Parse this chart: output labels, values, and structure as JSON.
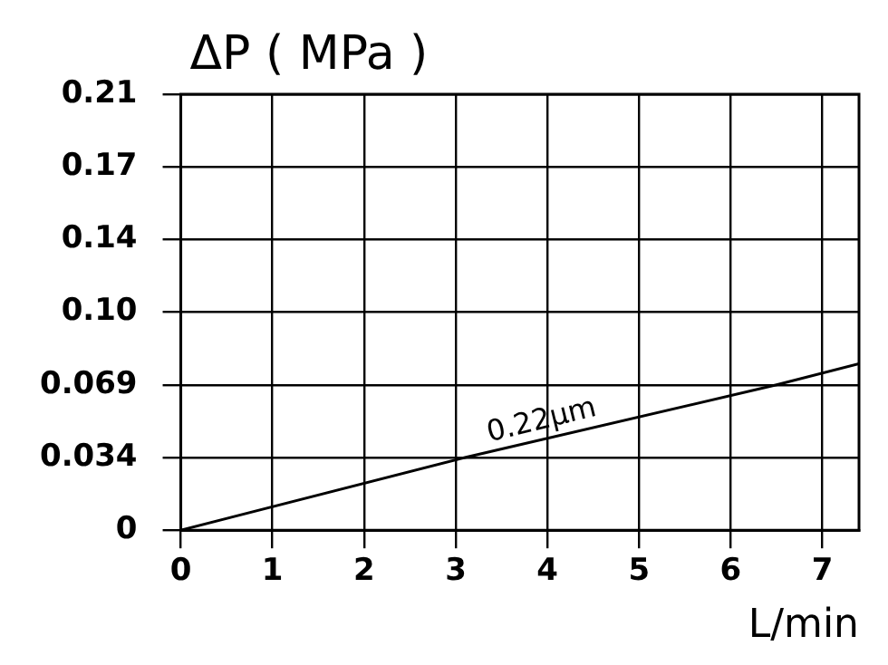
{
  "chart_data": {
    "type": "line",
    "ylabel": "ΔP ( MPa )",
    "xlabel": "L/min",
    "series": [
      {
        "name": "0.22μm",
        "color": "#000000",
        "x": [
          0,
          3.1,
          6.5,
          7.4
        ],
        "values": [
          0,
          0.0345,
          0.069,
          0.079
        ]
      }
    ],
    "xlim": [
      0,
      7.4
    ],
    "xticks": [
      0,
      1,
      2,
      3,
      4,
      5,
      6,
      7
    ],
    "ylim": [
      0,
      0.207
    ],
    "yticks": [
      0,
      {
        "value": 0.0345,
        "label": "0.034"
      },
      0.069,
      {
        "value": 0.1035,
        "label": "0.10"
      },
      {
        "value": 0.138,
        "label": "0.14"
      },
      {
        "value": 0.1725,
        "label": "0.17"
      },
      {
        "value": 0.207,
        "label": "0.21"
      }
    ],
    "grid": true,
    "legend": false,
    "marker": "none",
    "line_style": "solid"
  }
}
